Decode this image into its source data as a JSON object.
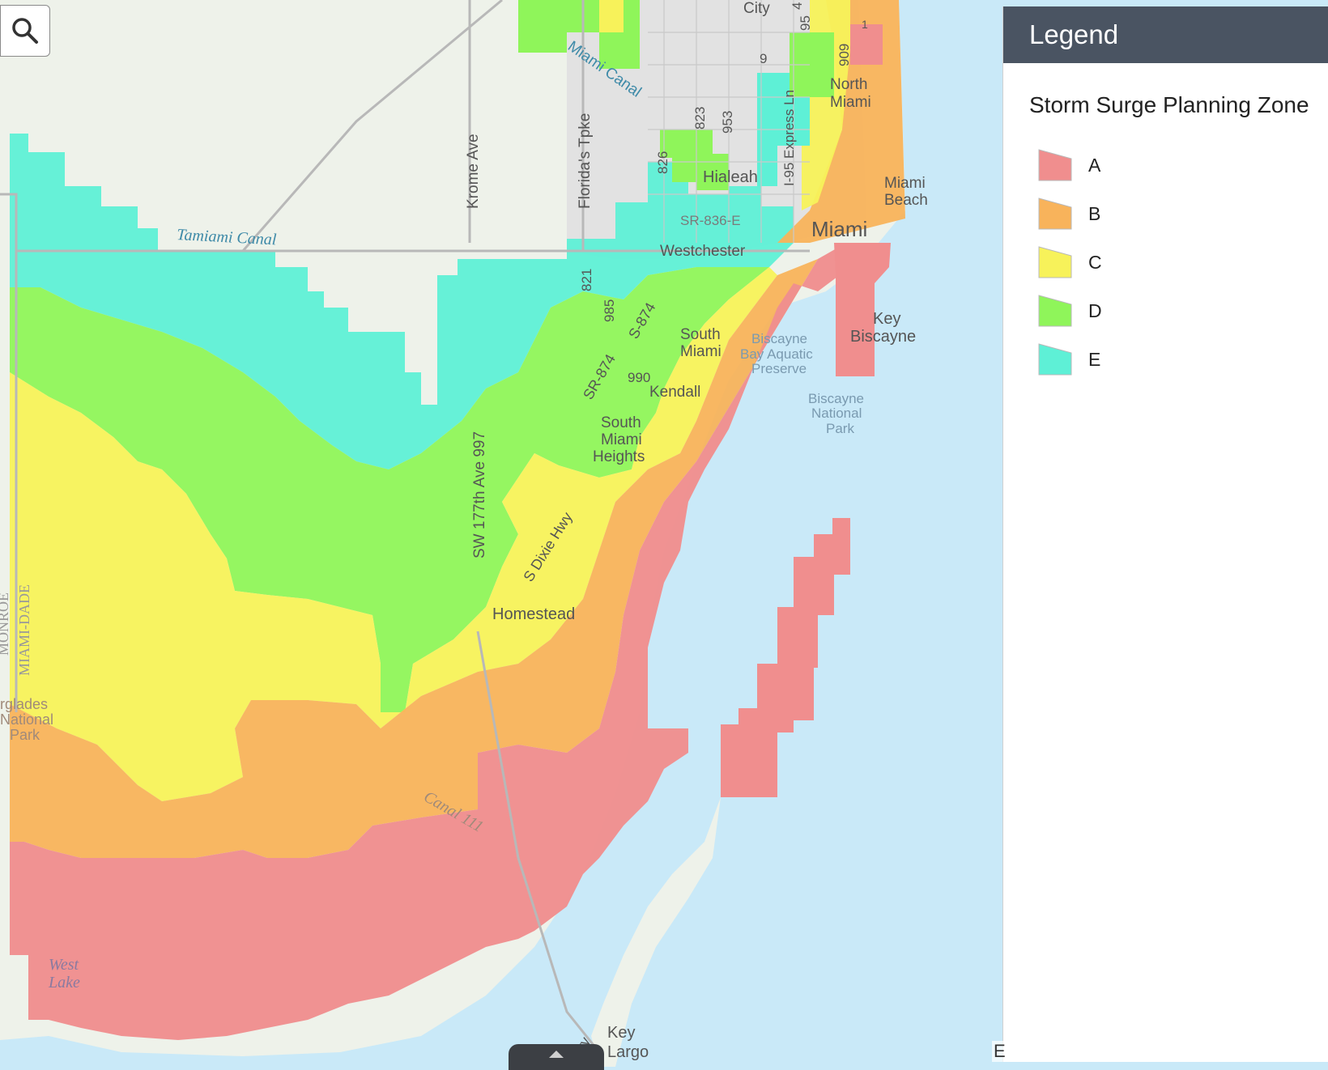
{
  "search": {
    "icon": "search-icon"
  },
  "legend": {
    "title": "Legend",
    "subtitle": "Storm Surge Planning Zone",
    "items": [
      {
        "label": "A",
        "color": "#f08e8e"
      },
      {
        "label": "B",
        "color": "#f8b35b"
      },
      {
        "label": "C",
        "color": "#f7f25a"
      },
      {
        "label": "D",
        "color": "#8ff55a"
      },
      {
        "label": "E",
        "color": "#5ef0d6"
      }
    ]
  },
  "map": {
    "colors": {
      "water": "#c9e9f8",
      "land": "#eef2ea",
      "urban": "#e3e3e3"
    },
    "labels": {
      "city": "City",
      "miami_canal": "Miami Canal",
      "north_miami": [
        "North",
        "Miami"
      ],
      "miami_beach": [
        "Miami",
        "Beach"
      ],
      "hialeah": "Hialeah",
      "miami": "Miami",
      "westchester": "Westchester",
      "sr836": "SR-836-E",
      "key_biscayne": [
        "Key",
        "Biscayne"
      ],
      "biscayne_aquatic": [
        "Biscayne",
        "Bay Aquatic",
        "Preserve"
      ],
      "biscayne_np": [
        "Biscayne",
        "National",
        "Park"
      ],
      "south_miami": [
        "South",
        "Miami"
      ],
      "kendall": "Kendall",
      "south_miami_heights": [
        "South",
        "Miami",
        "Heights"
      ],
      "homestead": "Homestead",
      "tamiami_canal": "Tamiami Canal",
      "krome_ave": "Krome Ave",
      "fl_tpke": "Florida's Tpke",
      "sw177": "SW 177th Ave 997",
      "s_dixie": "S Dixie Hwy",
      "sr874": "SR-874",
      "s874": "S-874",
      "canal111": "Canal 111",
      "everglades": [
        "rglades",
        "National",
        "Park"
      ],
      "west_lake": [
        "West",
        "Lake"
      ],
      "key_largo": [
        "Key",
        "Largo"
      ],
      "monroe": "MONROE",
      "miami_dade": "MIAMI-DADE",
      "hwy": "Hwy",
      "r821": "821",
      "r985": "985",
      "r990": "990",
      "r826": "826",
      "r823": "823",
      "r953": "953",
      "r9": "9",
      "r95": "95",
      "r909": "909",
      "i95exp": "I-95 Express Ln",
      "r4": "4",
      "r1": "1"
    }
  },
  "attribution": {
    "text": "E"
  }
}
